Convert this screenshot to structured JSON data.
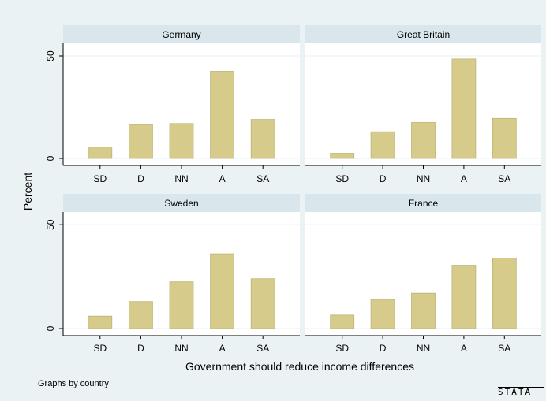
{
  "colors": {
    "background": "#eaf2f3",
    "plot_area": "#ffffff",
    "strip": "#d9e6eb",
    "bar": "#d7cb8b",
    "bar_outline": "#bdb373",
    "grid": "#eaf2f3",
    "text": "#000000"
  },
  "chart_data": {
    "type": "bar",
    "xlabel": "Government should reduce income differences",
    "ylabel": "Percent",
    "note": "Graphs by country",
    "categories": [
      "SD",
      "D",
      "NN",
      "A",
      "SA"
    ],
    "ylim": [
      0,
      55
    ],
    "yticks": [
      0,
      50
    ],
    "panels": [
      {
        "name": "Germany",
        "values": [
          5.5,
          16.5,
          17,
          42.5,
          19
        ]
      },
      {
        "name": "Great Britain",
        "values": [
          2.5,
          13,
          17.5,
          48.5,
          19.5
        ]
      },
      {
        "name": "Sweden",
        "values": [
          6,
          13,
          22.5,
          36,
          24
        ]
      },
      {
        "name": "France",
        "values": [
          6.5,
          14,
          17,
          30.5,
          34
        ]
      }
    ]
  },
  "logo": {
    "text": "STATA"
  }
}
